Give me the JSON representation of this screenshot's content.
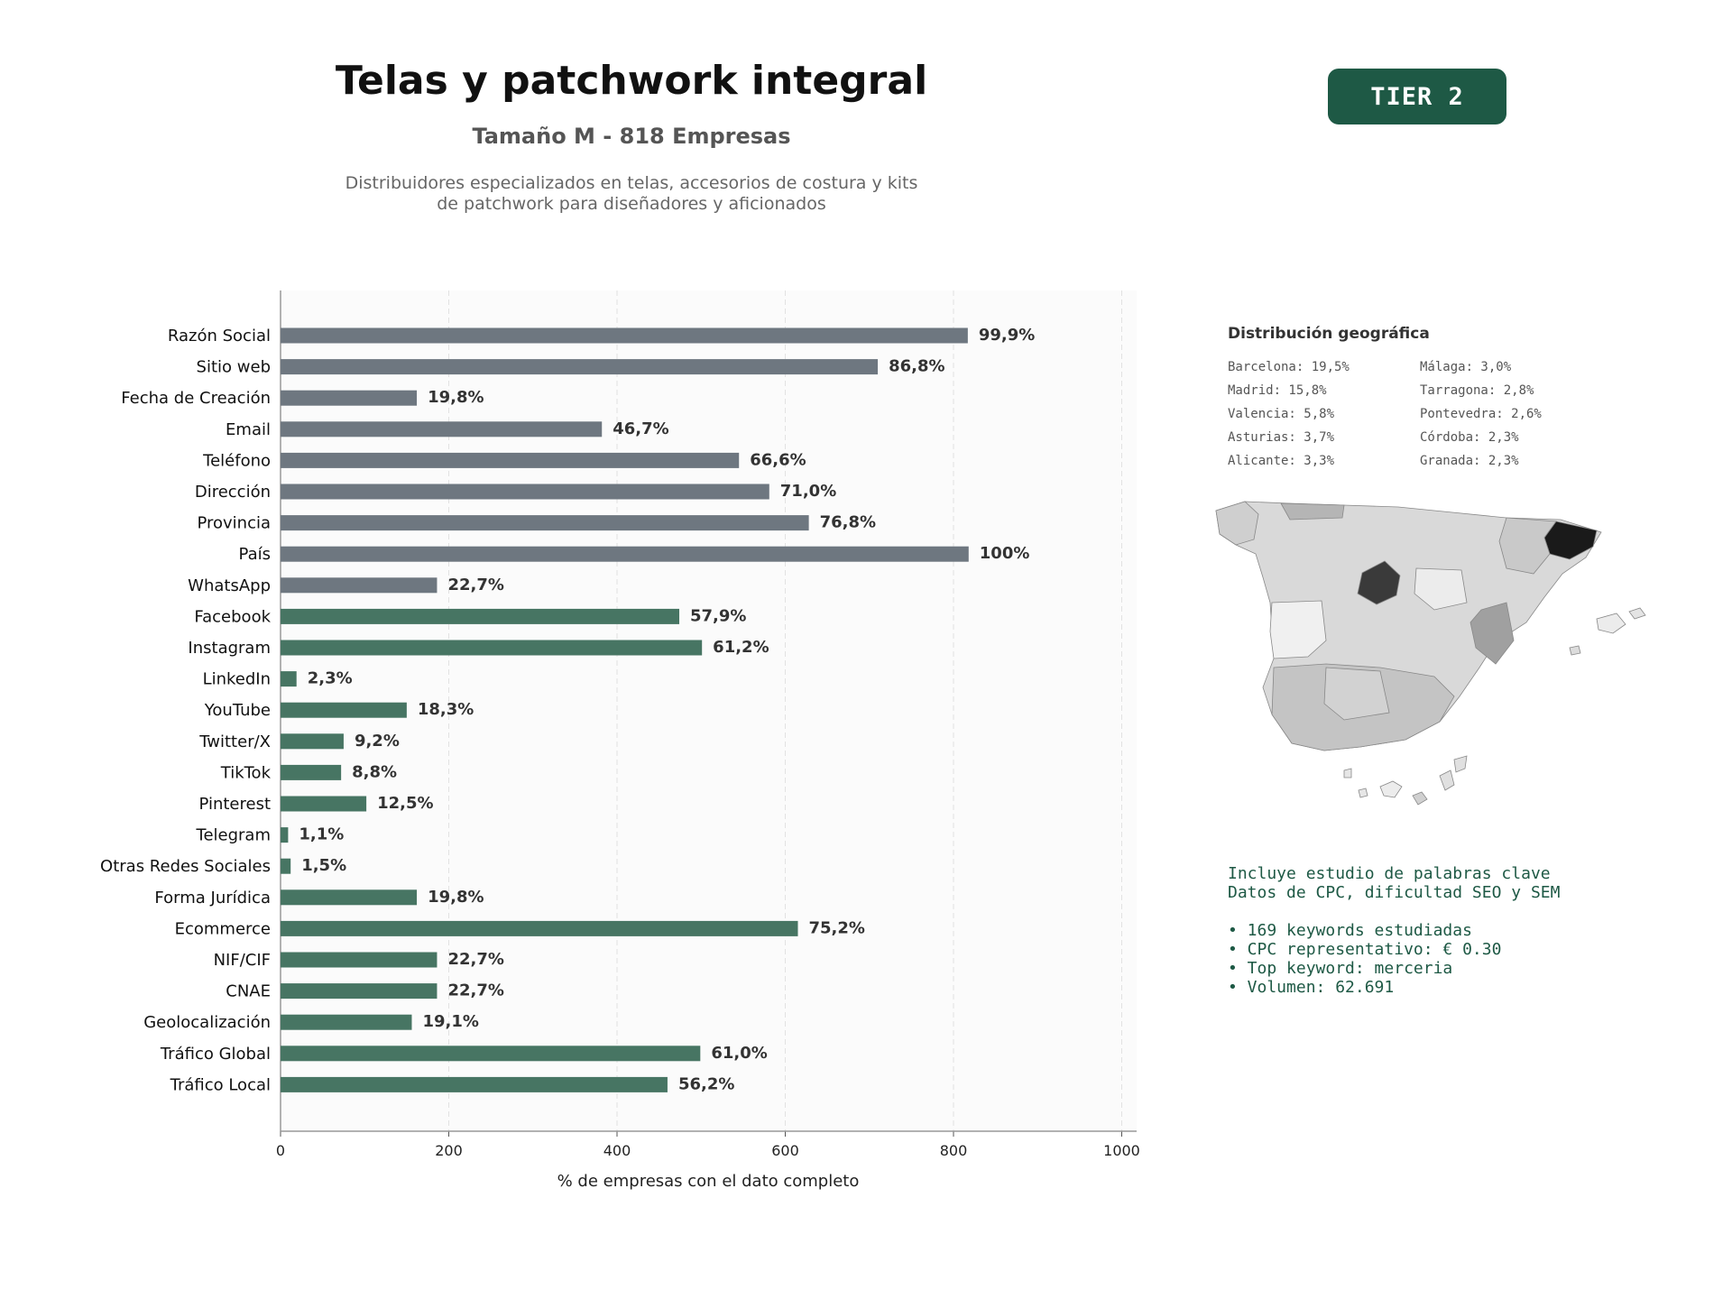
{
  "header": {
    "title": "Telas y patchwork integral",
    "subtitle": "Tamaño M - 818 Empresas",
    "description_line1": "Distribuidores especializados en telas, accesorios de costura y kits",
    "description_line2": "de patchwork para diseñadores y aficionados"
  },
  "tier_badge": "TIER 2",
  "colors": {
    "gray_bar": "#6e7780",
    "green_bar": "#477563",
    "accent": "#1e5945"
  },
  "chart_data": {
    "type": "bar",
    "orientation": "horizontal",
    "xlabel": "% de empresas con el dato completo",
    "xlim": [
      0,
      1020
    ],
    "xticks": [
      0,
      200,
      400,
      600,
      800,
      1000
    ],
    "grid": true,
    "categories": [
      "Razón Social",
      "Sitio web",
      "Fecha de Creación",
      "Email",
      "Teléfono",
      "Dirección",
      "Provincia",
      "País",
      "WhatsApp",
      "Facebook",
      "Instagram",
      "LinkedIn",
      "YouTube",
      "Twitter/X",
      "TikTok",
      "Pinterest",
      "Telegram",
      "Otras Redes Sociales",
      "Forma Jurídica",
      "Ecommerce",
      "NIF/CIF",
      "CNAE",
      "Geolocalización",
      "Tráfico Global",
      "Tráfico Local"
    ],
    "values": [
      817,
      710,
      162,
      382,
      545,
      581,
      628,
      818,
      186,
      474,
      501,
      19,
      150,
      75,
      72,
      102,
      9,
      12,
      162,
      615,
      186,
      186,
      156,
      499,
      460
    ],
    "labels": [
      "99,9%",
      "86,8%",
      "19,8%",
      "46,7%",
      "66,6%",
      "71,0%",
      "76,8%",
      "100%",
      "22,7%",
      "57,9%",
      "61,2%",
      "2,3%",
      "18,3%",
      "9,2%",
      "8,8%",
      "12,5%",
      "1,1%",
      "1,5%",
      "19,8%",
      "75,2%",
      "22,7%",
      "22,7%",
      "19,1%",
      "61,0%",
      "56,2%"
    ],
    "groups": [
      "gray",
      "gray",
      "gray",
      "gray",
      "gray",
      "gray",
      "gray",
      "gray",
      "gray",
      "green",
      "green",
      "green",
      "green",
      "green",
      "green",
      "green",
      "green",
      "green",
      "green",
      "green",
      "green",
      "green",
      "green",
      "green",
      "green"
    ]
  },
  "geo": {
    "title": "Distribución geográfica",
    "items": [
      "Barcelona: 19,5%",
      "Málaga: 3,0%",
      "Madrid: 15,8%",
      "Tarragona: 2,8%",
      "Valencia: 5,8%",
      "Pontevedra: 2,6%",
      "Asturias: 3,7%",
      "Córdoba: 2,3%",
      "Alicante: 3,3%",
      "Granada: 2,3%"
    ]
  },
  "seo": {
    "line1": "Incluye estudio de palabras clave",
    "line2": "Datos de CPC, dificultad SEO y SEM",
    "bullets": [
      "• 169 keywords estudiadas",
      "• CPC representativo: € 0.30",
      "• Top keyword: merceria",
      "• Volumen: 62.691"
    ]
  }
}
